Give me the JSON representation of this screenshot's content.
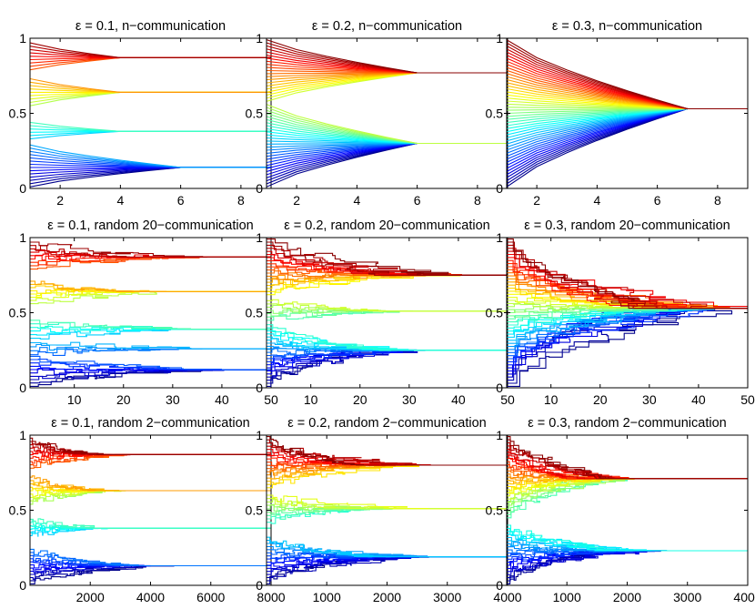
{
  "chart_data": [
    {
      "type": "line",
      "title": "ε = 0.1, n−communication",
      "xlabel": "",
      "ylabel": "",
      "xlim": [
        1,
        9
      ],
      "ylim": [
        0,
        1
      ],
      "xticks": [
        "2",
        "4",
        "6",
        "8"
      ],
      "yticks": [
        "0",
        "0.5",
        "1"
      ],
      "colormap": "jet (color by initial opinion)",
      "agents": 50,
      "cluster_converge": [
        {
          "final": 0.87,
          "from": [
            0.79,
            0.97
          ],
          "at": 4
        },
        {
          "final": 0.64,
          "from": [
            0.55,
            0.73
          ],
          "at": 4
        },
        {
          "final": 0.38,
          "from": [
            0.33,
            0.44
          ],
          "at": 4
        },
        {
          "final": 0.14,
          "from": [
            0.01,
            0.29
          ],
          "at": 6
        }
      ]
    },
    {
      "type": "line",
      "title": "ε = 0.2, n−communication",
      "xlabel": "",
      "ylabel": "",
      "xlim": [
        1,
        9
      ],
      "ylim": [
        0,
        1
      ],
      "xticks": [
        "2",
        "4",
        "6",
        "8"
      ],
      "yticks": [
        "0",
        "0.5",
        "1"
      ],
      "colormap": "jet (color by initial opinion)",
      "agents": 50,
      "cluster_converge": [
        {
          "final": 0.77,
          "from": [
            0.58,
            0.99
          ],
          "at": 6
        },
        {
          "final": 0.3,
          "from": [
            0.01,
            0.56
          ],
          "at": 6
        }
      ]
    },
    {
      "type": "line",
      "title": "ε = 0.3, n−communication",
      "xlabel": "",
      "ylabel": "",
      "xlim": [
        1,
        9
      ],
      "ylim": [
        0,
        1
      ],
      "xticks": [
        "2",
        "4",
        "6",
        "8"
      ],
      "yticks": [
        "0",
        "0.5",
        "1"
      ],
      "colormap": "jet (color by initial opinion)",
      "agents": 50,
      "cluster_converge": [
        {
          "final": 0.53,
          "from": [
            0.01,
            0.99
          ],
          "at": 7
        }
      ]
    },
    {
      "type": "line",
      "title": "ε = 0.1, random 20−communication",
      "xlabel": "",
      "ylabel": "",
      "xlim": [
        1,
        50
      ],
      "ylim": [
        0,
        1
      ],
      "xticks": [
        "10",
        "20",
        "30",
        "40",
        "50"
      ],
      "yticks": [
        "0",
        "0.5",
        "1"
      ],
      "colormap": "jet (color by initial opinion)",
      "agents": 50,
      "cluster_converge": [
        {
          "final": 0.87,
          "from": [
            0.79,
            0.97
          ],
          "at": 35
        },
        {
          "final": 0.64,
          "from": [
            0.56,
            0.71
          ],
          "at": 30
        },
        {
          "final": 0.39,
          "from": [
            0.33,
            0.45
          ],
          "at": 50
        },
        {
          "final": 0.26,
          "from": [
            0.22,
            0.3
          ],
          "at": 40
        },
        {
          "final": 0.12,
          "from": [
            0.01,
            0.21
          ],
          "at": 45
        }
      ]
    },
    {
      "type": "line",
      "title": "ε = 0.2, random 20−communication",
      "xlabel": "",
      "ylabel": "",
      "xlim": [
        1,
        50
      ],
      "ylim": [
        0,
        1
      ],
      "xticks": [
        "10",
        "20",
        "30",
        "40",
        "50"
      ],
      "yticks": [
        "0",
        "0.5",
        "1"
      ],
      "colormap": "jet (color by initial opinion)",
      "agents": 50,
      "cluster_converge": [
        {
          "final": 0.75,
          "from": [
            0.62,
            0.99
          ],
          "at": 40
        },
        {
          "final": 0.51,
          "from": [
            0.45,
            0.58
          ],
          "at": 30
        },
        {
          "final": 0.25,
          "from": [
            0.01,
            0.42
          ],
          "at": 32
        }
      ]
    },
    {
      "type": "line",
      "title": "ε = 0.3, random 20−communication",
      "xlabel": "",
      "ylabel": "",
      "xlim": [
        1,
        50
      ],
      "ylim": [
        0,
        1
      ],
      "xticks": [
        "10",
        "20",
        "30",
        "40",
        "50"
      ],
      "yticks": [
        "0",
        "0.5",
        "1"
      ],
      "colormap": "jet (color by initial opinion)",
      "agents": 50,
      "cluster_converge": [
        {
          "final": 0.53,
          "from": [
            0.01,
            0.99
          ],
          "at": 45
        }
      ]
    },
    {
      "type": "line",
      "title": "ε = 0.1, random 2−communication",
      "xlabel": "",
      "ylabel": "",
      "xlim": [
        1,
        8000
      ],
      "ylim": [
        0,
        1
      ],
      "xticks": [
        "2000",
        "4000",
        "6000",
        "8000"
      ],
      "yticks": [
        "0",
        "0.5",
        "1"
      ],
      "colormap": "jet (color by initial opinion)",
      "agents": 50,
      "cluster_converge": [
        {
          "final": 0.87,
          "from": [
            0.78,
            0.98
          ],
          "at": 3500
        },
        {
          "final": 0.63,
          "from": [
            0.54,
            0.72
          ],
          "at": 3000
        },
        {
          "final": 0.38,
          "from": [
            0.33,
            0.44
          ],
          "at": 2500
        },
        {
          "final": 0.13,
          "from": [
            0.01,
            0.24
          ],
          "at": 4500
        }
      ]
    },
    {
      "type": "line",
      "title": "ε = 0.2, random 2−communication",
      "xlabel": "",
      "ylabel": "",
      "xlim": [
        1,
        4000
      ],
      "ylim": [
        0,
        1
      ],
      "xticks": [
        "1000",
        "2000",
        "3000",
        "4000"
      ],
      "yticks": [
        "0",
        "0.5",
        "1"
      ],
      "colormap": "jet (color by initial opinion)",
      "agents": 50,
      "cluster_converge": [
        {
          "final": 0.8,
          "from": [
            0.65,
            0.99
          ],
          "at": 2500
        },
        {
          "final": 0.51,
          "from": [
            0.42,
            0.6
          ],
          "at": 2600
        },
        {
          "final": 0.19,
          "from": [
            0.01,
            0.32
          ],
          "at": 2800
        }
      ]
    },
    {
      "type": "line",
      "title": "ε = 0.3, random 2−communication",
      "xlabel": "",
      "ylabel": "",
      "xlim": [
        1,
        4000
      ],
      "ylim": [
        0,
        1
      ],
      "xticks": [
        "1000",
        "2000",
        "3000",
        "4000"
      ],
      "yticks": [
        "0",
        "0.5",
        "1"
      ],
      "colormap": "jet (color by initial opinion)",
      "agents": 50,
      "cluster_converge": [
        {
          "final": 0.71,
          "from": [
            0.45,
            0.99
          ],
          "at": 2000
        },
        {
          "final": 0.23,
          "from": [
            0.01,
            0.4
          ],
          "at": 2500
        }
      ]
    }
  ]
}
